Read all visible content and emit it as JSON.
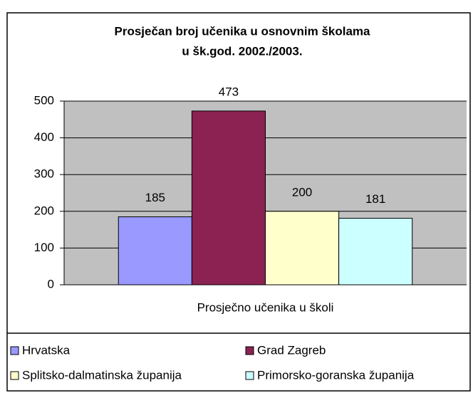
{
  "chart_data": {
    "type": "bar",
    "title": [
      "Prosječan broj učenika u osnovnim školama",
      "u šk.god. 2002./2003."
    ],
    "categories": [
      "Prosječno učenika u školi"
    ],
    "series": [
      {
        "name": "Hrvatska",
        "color": "#9999ff",
        "values": [
          185
        ]
      },
      {
        "name": "Grad Zagreb",
        "color": "#8b2252",
        "values": [
          473
        ]
      },
      {
        "name": "Splitsko-dalmatinska županija",
        "color": "#ffffcc",
        "values": [
          200
        ]
      },
      {
        "name": "Primorsko-goranska županija",
        "color": "#ccffff",
        "values": [
          181
        ]
      }
    ],
    "ylim": [
      0,
      500
    ],
    "yticks": [
      0,
      100,
      200,
      300,
      400,
      500
    ],
    "grid": true,
    "legend": "bottom"
  }
}
